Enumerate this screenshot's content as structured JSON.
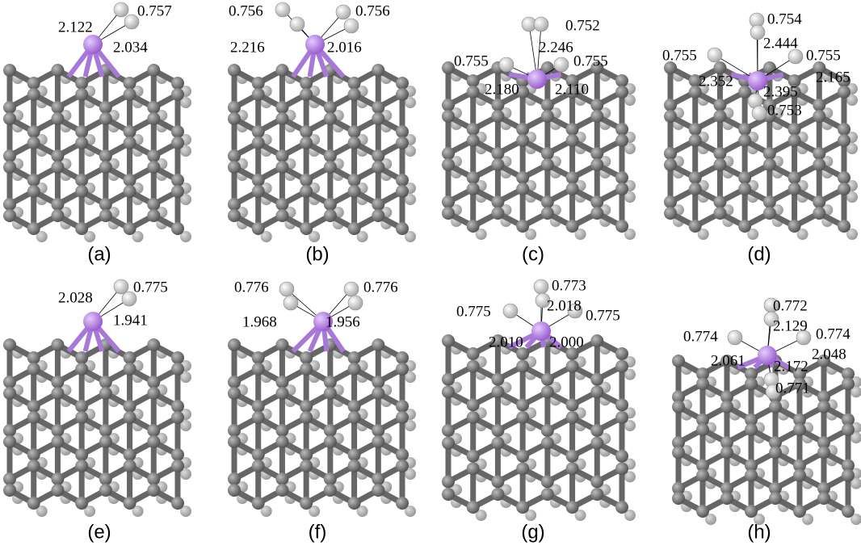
{
  "panels": [
    {
      "label": "(a)",
      "annotations": [
        "2.122",
        "0.757",
        "2.034"
      ]
    },
    {
      "label": "(b)",
      "annotations": [
        "0.756",
        "0.756",
        "2.216",
        "2.016"
      ]
    },
    {
      "label": "(c)",
      "annotations": [
        "0.752",
        "2.246",
        "0.755",
        "0.755",
        "2.180",
        "2.110"
      ]
    },
    {
      "label": "(d)",
      "annotations": [
        "0.754",
        "2.444",
        "0.755",
        "0.755",
        "2.352",
        "2.165",
        "2.395",
        "0.753"
      ]
    },
    {
      "label": "(e)",
      "annotations": [
        "2.028",
        "0.775",
        "1.941"
      ]
    },
    {
      "label": "(f)",
      "annotations": [
        "0.776",
        "0.776",
        "1.968",
        "1.956"
      ]
    },
    {
      "label": "(g)",
      "annotations": [
        "0.773",
        "2.018",
        "0.775",
        "0.775",
        "2.010",
        "2.000"
      ]
    },
    {
      "label": "(h)",
      "annotations": [
        "0.772",
        "2.129",
        "0.774",
        "0.774",
        "2.048",
        "2.061",
        "2.172",
        "0.771"
      ]
    }
  ]
}
